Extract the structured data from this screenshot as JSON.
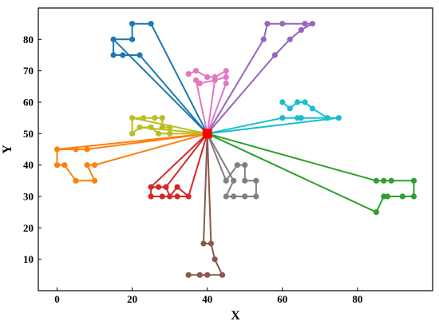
{
  "chart_data": {
    "type": "scatter",
    "title": "",
    "xlabel": "X",
    "ylabel": "Y",
    "xlim": [
      -5,
      100
    ],
    "ylim": [
      0,
      90
    ],
    "xticks": [
      0,
      20,
      40,
      60,
      80
    ],
    "yticks": [
      10,
      20,
      30,
      40,
      50,
      60,
      70,
      80
    ],
    "grid": false,
    "legend": "none",
    "center": {
      "x": 40,
      "y": 50,
      "color": "#ff0000",
      "marker": "square"
    },
    "series": [
      {
        "color": "#1f77b4",
        "route": [
          [
            15,
            80
          ],
          [
            20,
            80
          ],
          [
            20,
            85
          ],
          [
            25,
            85
          ],
          [
            20,
            85
          ],
          [
            20,
            80
          ],
          [
            15,
            80
          ],
          [
            15,
            75
          ],
          [
            17.5,
            75
          ],
          [
            22,
            75
          ],
          [
            17.5,
            75
          ],
          [
            15,
            75
          ]
        ],
        "spokes": [
          [
            15,
            80
          ],
          [
            22,
            75
          ],
          [
            25,
            85
          ]
        ]
      },
      {
        "color": "#ff7f0e",
        "route": [
          [
            0,
            45
          ],
          [
            5,
            45
          ],
          [
            8,
            45
          ],
          [
            5,
            45
          ],
          [
            0,
            45
          ],
          [
            0,
            40
          ],
          [
            2,
            40
          ],
          [
            5,
            35
          ],
          [
            10,
            35
          ],
          [
            8,
            40
          ],
          [
            10,
            40
          ]
        ],
        "spokes": [
          [
            0,
            45
          ],
          [
            8,
            45
          ],
          [
            10,
            40
          ]
        ]
      },
      {
        "color": "#2ca02c",
        "route": [
          [
            85,
            35
          ],
          [
            87,
            35
          ],
          [
            89,
            35
          ],
          [
            95,
            35
          ],
          [
            95,
            30
          ],
          [
            92,
            30
          ],
          [
            88,
            30
          ],
          [
            87,
            30
          ],
          [
            85,
            25
          ]
        ],
        "spokes": [
          [
            85,
            35
          ],
          [
            85,
            25
          ]
        ]
      },
      {
        "color": "#d62728",
        "route": [
          [
            25,
            33
          ],
          [
            27,
            33
          ],
          [
            29,
            33
          ],
          [
            30,
            30
          ],
          [
            32,
            33
          ],
          [
            35,
            30
          ],
          [
            32,
            30
          ],
          [
            28,
            30
          ],
          [
            25,
            30
          ],
          [
            25,
            33
          ]
        ],
        "spokes": [
          [
            25,
            33
          ],
          [
            29,
            33
          ],
          [
            35,
            30
          ]
        ]
      },
      {
        "color": "#9467bd",
        "route": [
          [
            55,
            80
          ],
          [
            56,
            85
          ],
          [
            60,
            85
          ],
          [
            66,
            85
          ],
          [
            68,
            85
          ],
          [
            65,
            83
          ],
          [
            62,
            80
          ],
          [
            58,
            75
          ]
        ],
        "spokes": [
          [
            55,
            80
          ],
          [
            58,
            75
          ]
        ]
      },
      {
        "color": "#8c564b",
        "route": [
          [
            39,
            15
          ],
          [
            41,
            15
          ],
          [
            42,
            10
          ],
          [
            44,
            5
          ],
          [
            40,
            5
          ],
          [
            38,
            5
          ],
          [
            35,
            5
          ]
        ],
        "spokes": [
          [
            39,
            15
          ],
          [
            41,
            15
          ]
        ]
      },
      {
        "color": "#e377c2",
        "route": [
          [
            35,
            69
          ],
          [
            37,
            70
          ],
          [
            40,
            68
          ],
          [
            42,
            68
          ],
          [
            45,
            70
          ],
          [
            45,
            66
          ],
          [
            45,
            68
          ],
          [
            42,
            67
          ],
          [
            38,
            66
          ],
          [
            37,
            67
          ]
        ],
        "spokes": [
          [
            37,
            67
          ],
          [
            42,
            67
          ],
          [
            45,
            66
          ]
        ]
      },
      {
        "color": "#7f7f7f",
        "route": [
          [
            45,
            35
          ],
          [
            48,
            40
          ],
          [
            50,
            40
          ],
          [
            50,
            35
          ],
          [
            53,
            35
          ],
          [
            53,
            30
          ],
          [
            50,
            30
          ],
          [
            47,
            30
          ],
          [
            45,
            30
          ],
          [
            47,
            35
          ]
        ],
        "spokes": [
          [
            45,
            35
          ],
          [
            47,
            35
          ]
        ]
      },
      {
        "color": "#bcbd22",
        "route": [
          [
            20,
            55
          ],
          [
            23,
            55
          ],
          [
            26,
            55
          ],
          [
            28,
            55
          ],
          [
            28,
            52
          ],
          [
            30,
            52
          ],
          [
            30,
            50
          ],
          [
            27,
            50
          ],
          [
            25,
            52
          ],
          [
            22,
            52
          ],
          [
            20,
            50
          ],
          [
            20,
            55
          ]
        ],
        "spokes": [
          [
            20,
            55
          ],
          [
            22,
            52
          ],
          [
            30,
            50
          ]
        ]
      },
      {
        "color": "#17becf",
        "route": [
          [
            60,
            60
          ],
          [
            62,
            58
          ],
          [
            64,
            60
          ],
          [
            66,
            60
          ],
          [
            68,
            58
          ],
          [
            72,
            55
          ],
          [
            75,
            55
          ],
          [
            65,
            55
          ],
          [
            64,
            55
          ],
          [
            60,
            55
          ]
        ],
        "spokes": [
          [
            60,
            55
          ],
          [
            75,
            55
          ]
        ]
      }
    ]
  }
}
